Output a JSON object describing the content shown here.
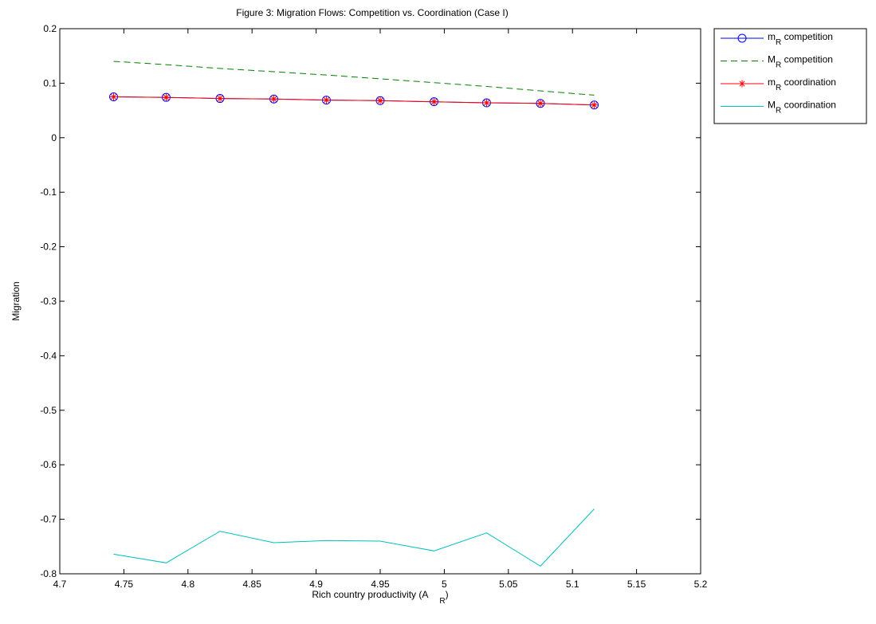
{
  "chart_data": {
    "type": "line",
    "title": "Figure 3: Migration Flows: Competition vs. Coordination (Case I)",
    "xlabel": "Rich country productivity (A",
    "xlabel_subscript": "R",
    "xlabel_suffix": ")",
    "ylabel": "Migration",
    "xlim": [
      4.7,
      5.2
    ],
    "ylim": [
      -0.8,
      0.2
    ],
    "xticks": [
      "4.7",
      "4.75",
      "4.8",
      "4.85",
      "4.9",
      "4.95",
      "5",
      "5.05",
      "5.1",
      "5.15",
      "5.2"
    ],
    "yticks": [
      "0.2",
      "0.1",
      "0",
      "-0.1",
      "-0.2",
      "-0.3",
      "-0.4",
      "-0.5",
      "-0.6",
      "-0.7",
      "-0.8"
    ],
    "xtick_values": [
      4.7,
      4.75,
      4.8,
      4.85,
      4.9,
      4.95,
      5.0,
      5.05,
      5.1,
      5.15,
      5.2
    ],
    "ytick_values": [
      0.2,
      0.1,
      0,
      -0.1,
      -0.2,
      -0.3,
      -0.4,
      -0.5,
      -0.6,
      -0.7,
      -0.8
    ],
    "grid": false,
    "legend_position": "outside-top-right",
    "x": [
      4.742,
      4.783,
      4.825,
      4.867,
      4.908,
      4.95,
      4.992,
      5.033,
      5.075,
      5.117
    ],
    "series": [
      {
        "name": "m",
        "name_subscript": "R",
        "name_suffix": " competition",
        "color": "#0000ff",
        "dash": "solid",
        "marker": "circle",
        "values": [
          0.075,
          0.074,
          0.072,
          0.071,
          0.069,
          0.068,
          0.066,
          0.064,
          0.063,
          0.06
        ]
      },
      {
        "name": "M",
        "name_subscript": "R",
        "name_suffix": " competition",
        "color": "#008000",
        "dash": "dashed",
        "marker": "none",
        "values": [
          0.14,
          0.134,
          0.127,
          0.121,
          0.115,
          0.108,
          0.101,
          0.094,
          0.086,
          0.078
        ]
      },
      {
        "name": "m",
        "name_subscript": "R",
        "name_suffix": " coordination",
        "color": "#ff0000",
        "dash": "solid",
        "marker": "star",
        "values": [
          0.075,
          0.074,
          0.072,
          0.071,
          0.069,
          0.068,
          0.066,
          0.064,
          0.063,
          0.06
        ]
      },
      {
        "name": "M",
        "name_subscript": "R",
        "name_suffix": " coordination",
        "color": "#00bfbf",
        "dash": "solid",
        "marker": "none",
        "values": [
          -0.764,
          -0.78,
          -0.722,
          -0.743,
          -0.739,
          -0.74,
          -0.758,
          -0.725,
          -0.786,
          -0.681
        ]
      }
    ]
  }
}
